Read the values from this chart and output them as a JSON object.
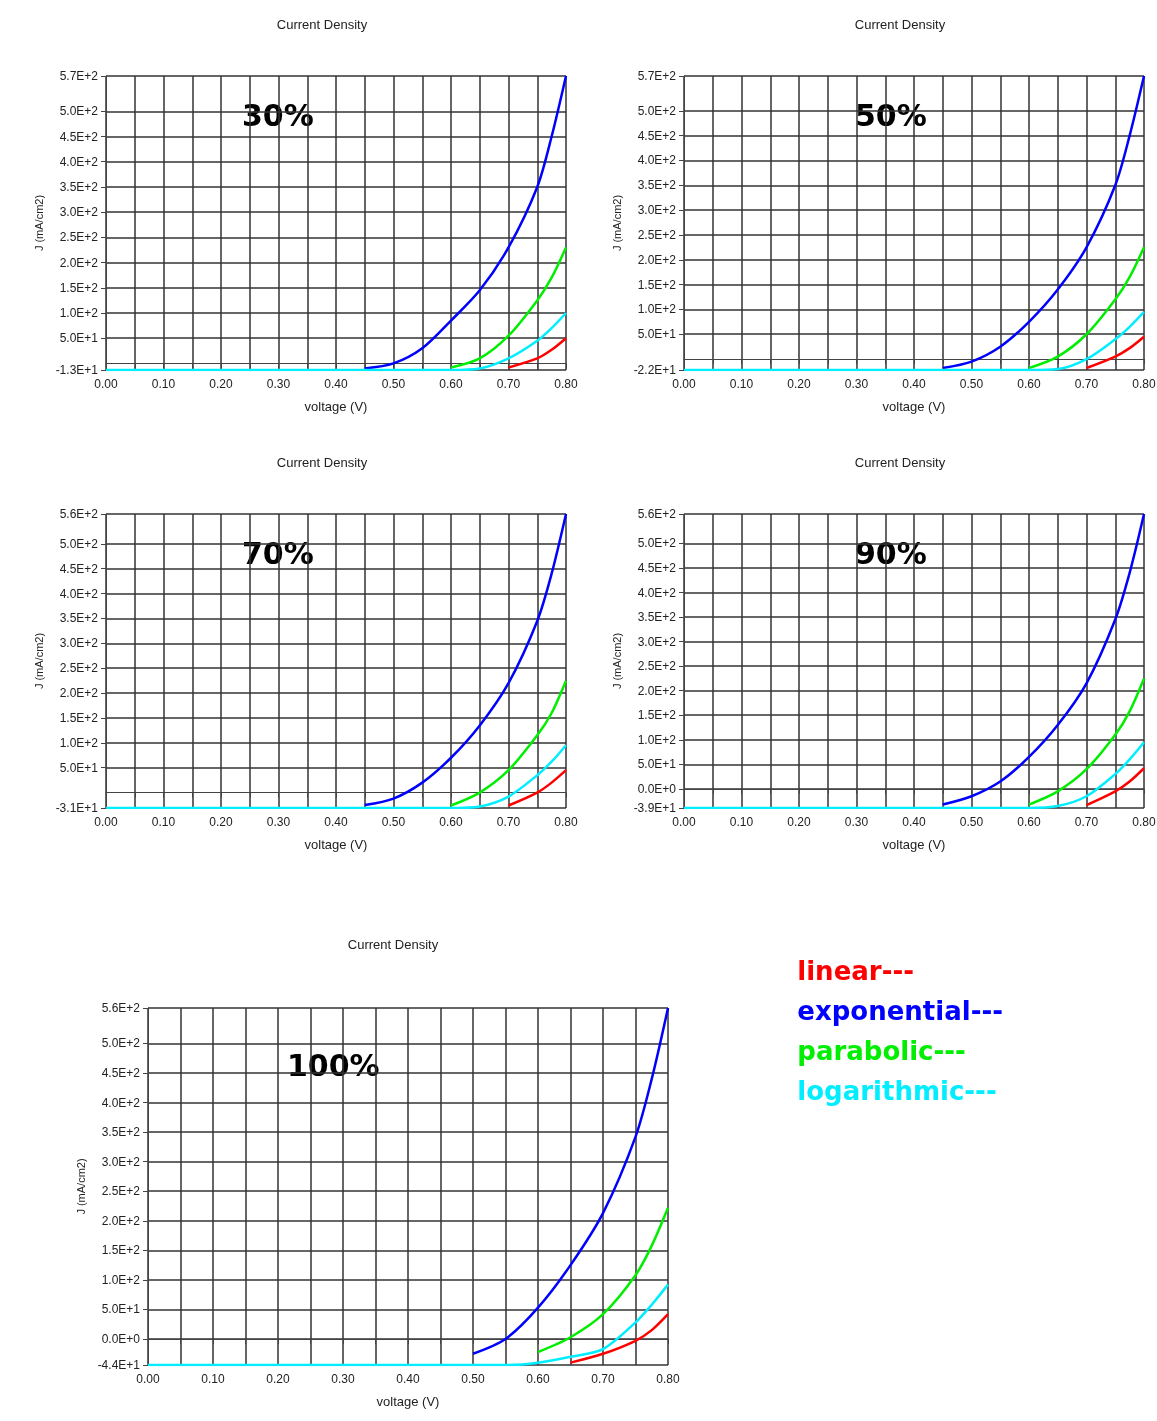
{
  "chart_data": [
    {
      "type": "line",
      "title": "Current Density",
      "xlabel": "voltage (V)",
      "ylabel": "J (mA/cm2)",
      "annotations": [
        "30%"
      ],
      "grid": true,
      "legend": false,
      "xlim": [
        0,
        0.8
      ],
      "ylim": [
        -13,
        570
      ],
      "xticks": [
        {
          "value": 0,
          "label": "0.00"
        },
        {
          "value": 0.05,
          "label": null
        },
        {
          "value": 0.1,
          "label": "0.10"
        },
        {
          "value": 0.15,
          "label": null
        },
        {
          "value": 0.2,
          "label": "0.20"
        },
        {
          "value": 0.25,
          "label": null
        },
        {
          "value": 0.3,
          "label": "0.30"
        },
        {
          "value": 0.35,
          "label": null
        },
        {
          "value": 0.4,
          "label": "0.40"
        },
        {
          "value": 0.45,
          "label": null
        },
        {
          "value": 0.5,
          "label": "0.50"
        },
        {
          "value": 0.55,
          "label": null
        },
        {
          "value": 0.6,
          "label": "0.60"
        },
        {
          "value": 0.65,
          "label": null
        },
        {
          "value": 0.7,
          "label": "0.70"
        },
        {
          "value": 0.75,
          "label": null
        },
        {
          "value": 0.8,
          "label": "0.80"
        }
      ],
      "yticks": [
        {
          "value": -13,
          "label": "-1.3E+1"
        },
        {
          "value": 50,
          "label": "5.0E+1"
        },
        {
          "value": 100,
          "label": "1.0E+2"
        },
        {
          "value": 150,
          "label": "1.5E+2"
        },
        {
          "value": 200,
          "label": "2.0E+2"
        },
        {
          "value": 250,
          "label": "2.5E+2"
        },
        {
          "value": 300,
          "label": "3.0E+2"
        },
        {
          "value": 350,
          "label": "3.5E+2"
        },
        {
          "value": 400,
          "label": "4.0E+2"
        },
        {
          "value": 450,
          "label": "4.5E+2"
        },
        {
          "value": 500,
          "label": "5.0E+2"
        },
        {
          "value": 570,
          "label": "5.7E+2"
        }
      ],
      "x": [
        0,
        0.4,
        0.45,
        0.5,
        0.55,
        0.6,
        0.65,
        0.7,
        0.75,
        0.775,
        0.8
      ],
      "series": [
        {
          "color": "#0000ff",
          "values": [
            null,
            null,
            -10,
            0,
            30,
            85,
            145,
            230,
            350,
            450,
            570
          ]
        },
        {
          "color": "#00ee00",
          "values": [
            null,
            null,
            null,
            null,
            null,
            -8,
            10,
            55,
            125,
            170,
            230
          ]
        },
        {
          "color": "#ff0000",
          "values": [
            null,
            null,
            null,
            null,
            null,
            null,
            null,
            -8,
            10,
            27,
            50
          ]
        },
        {
          "color": "#00eeff",
          "values": [
            -13,
            -13,
            -13,
            -13,
            -13,
            -13,
            -10,
            10,
            45,
            70,
            100
          ]
        }
      ]
    },
    {
      "type": "line",
      "title": "Current Density",
      "xlabel": "voltage (V)",
      "ylabel": "J (mA/cm2)",
      "annotations": [
        "50%"
      ],
      "grid": true,
      "legend": false,
      "xlim": [
        0,
        0.8
      ],
      "ylim": [
        -22,
        570
      ],
      "xticks": [
        {
          "value": 0,
          "label": "0.00"
        },
        {
          "value": 0.05,
          "label": null
        },
        {
          "value": 0.1,
          "label": "0.10"
        },
        {
          "value": 0.15,
          "label": null
        },
        {
          "value": 0.2,
          "label": "0.20"
        },
        {
          "value": 0.25,
          "label": null
        },
        {
          "value": 0.3,
          "label": "0.30"
        },
        {
          "value": 0.35,
          "label": null
        },
        {
          "value": 0.4,
          "label": "0.40"
        },
        {
          "value": 0.45,
          "label": null
        },
        {
          "value": 0.5,
          "label": "0.50"
        },
        {
          "value": 0.55,
          "label": null
        },
        {
          "value": 0.6,
          "label": "0.60"
        },
        {
          "value": 0.65,
          "label": null
        },
        {
          "value": 0.7,
          "label": "0.70"
        },
        {
          "value": 0.75,
          "label": null
        },
        {
          "value": 0.8,
          "label": "0.80"
        }
      ],
      "yticks": [
        {
          "value": -22,
          "label": "-2.2E+1"
        },
        {
          "value": 50,
          "label": "5.0E+1"
        },
        {
          "value": 100,
          "label": "1.0E+2"
        },
        {
          "value": 150,
          "label": "1.5E+2"
        },
        {
          "value": 200,
          "label": "2.0E+2"
        },
        {
          "value": 250,
          "label": "2.5E+2"
        },
        {
          "value": 300,
          "label": "3.0E+2"
        },
        {
          "value": 350,
          "label": "3.5E+2"
        },
        {
          "value": 400,
          "label": "4.0E+2"
        },
        {
          "value": 450,
          "label": "4.5E+2"
        },
        {
          "value": 500,
          "label": "5.0E+2"
        },
        {
          "value": 570,
          "label": "5.7E+2"
        }
      ],
      "x": [
        0,
        0.4,
        0.45,
        0.5,
        0.55,
        0.6,
        0.65,
        0.7,
        0.75,
        0.775,
        0.8
      ],
      "series": [
        {
          "color": "#0000ff",
          "values": [
            null,
            null,
            -18,
            -5,
            25,
            75,
            140,
            225,
            350,
            450,
            570
          ]
        },
        {
          "color": "#00ee00",
          "values": [
            null,
            null,
            null,
            null,
            null,
            -18,
            5,
            50,
            120,
            165,
            225
          ]
        },
        {
          "color": "#ff0000",
          "values": [
            null,
            null,
            null,
            null,
            null,
            null,
            null,
            -18,
            5,
            22,
            45
          ]
        },
        {
          "color": "#00eeff",
          "values": [
            -22,
            -22,
            -22,
            -22,
            -22,
            -22,
            -20,
            0,
            40,
            65,
            95
          ]
        }
      ]
    },
    {
      "type": "line",
      "title": "Current Density",
      "xlabel": "voltage (V)",
      "ylabel": "J (mA/cm2)",
      "annotations": [
        "70%"
      ],
      "grid": true,
      "legend": false,
      "xlim": [
        0,
        0.8
      ],
      "ylim": [
        -31,
        560
      ],
      "xticks": [
        {
          "value": 0,
          "label": "0.00"
        },
        {
          "value": 0.05,
          "label": null
        },
        {
          "value": 0.1,
          "label": "0.10"
        },
        {
          "value": 0.15,
          "label": null
        },
        {
          "value": 0.2,
          "label": "0.20"
        },
        {
          "value": 0.25,
          "label": null
        },
        {
          "value": 0.3,
          "label": "0.30"
        },
        {
          "value": 0.35,
          "label": null
        },
        {
          "value": 0.4,
          "label": "0.40"
        },
        {
          "value": 0.45,
          "label": null
        },
        {
          "value": 0.5,
          "label": "0.50"
        },
        {
          "value": 0.55,
          "label": null
        },
        {
          "value": 0.6,
          "label": "0.60"
        },
        {
          "value": 0.65,
          "label": null
        },
        {
          "value": 0.7,
          "label": "0.70"
        },
        {
          "value": 0.75,
          "label": null
        },
        {
          "value": 0.8,
          "label": "0.80"
        }
      ],
      "yticks": [
        {
          "value": -31,
          "label": "-3.1E+1"
        },
        {
          "value": 50,
          "label": "5.0E+1"
        },
        {
          "value": 100,
          "label": "1.0E+2"
        },
        {
          "value": 150,
          "label": "1.5E+2"
        },
        {
          "value": 200,
          "label": "2.0E+2"
        },
        {
          "value": 250,
          "label": "2.5E+2"
        },
        {
          "value": 300,
          "label": "3.0E+2"
        },
        {
          "value": 350,
          "label": "3.5E+2"
        },
        {
          "value": 400,
          "label": "4.0E+2"
        },
        {
          "value": 450,
          "label": "4.5E+2"
        },
        {
          "value": 500,
          "label": "5.0E+2"
        },
        {
          "value": 560,
          "label": "5.6E+2"
        }
      ],
      "x": [
        0,
        0.4,
        0.45,
        0.5,
        0.55,
        0.6,
        0.65,
        0.7,
        0.75,
        0.775,
        0.8
      ],
      "series": [
        {
          "color": "#0000ff",
          "values": [
            null,
            null,
            -25,
            -12,
            20,
            70,
            135,
            220,
            345,
            440,
            560
          ]
        },
        {
          "color": "#00ee00",
          "values": [
            null,
            null,
            null,
            null,
            null,
            -26,
            0,
            45,
            115,
            160,
            225
          ]
        },
        {
          "color": "#ff0000",
          "values": [
            null,
            null,
            null,
            null,
            null,
            null,
            null,
            -26,
            0,
            20,
            45
          ]
        },
        {
          "color": "#00eeff",
          "values": [
            -31,
            -31,
            -31,
            -31,
            -31,
            -31,
            -28,
            -8,
            35,
            62,
            95
          ]
        }
      ]
    },
    {
      "type": "line",
      "title": "Current Density",
      "xlabel": "voltage (V)",
      "ylabel": "J (mA/cm2)",
      "annotations": [
        "90%"
      ],
      "grid": true,
      "legend": false,
      "xlim": [
        0,
        0.8
      ],
      "ylim": [
        -39,
        560
      ],
      "xticks": [
        {
          "value": 0,
          "label": "0.00"
        },
        {
          "value": 0.05,
          "label": null
        },
        {
          "value": 0.1,
          "label": "0.10"
        },
        {
          "value": 0.15,
          "label": null
        },
        {
          "value": 0.2,
          "label": "0.20"
        },
        {
          "value": 0.25,
          "label": null
        },
        {
          "value": 0.3,
          "label": "0.30"
        },
        {
          "value": 0.35,
          "label": null
        },
        {
          "value": 0.4,
          "label": "0.40"
        },
        {
          "value": 0.45,
          "label": null
        },
        {
          "value": 0.5,
          "label": "0.50"
        },
        {
          "value": 0.55,
          "label": null
        },
        {
          "value": 0.6,
          "label": "0.60"
        },
        {
          "value": 0.65,
          "label": null
        },
        {
          "value": 0.7,
          "label": "0.70"
        },
        {
          "value": 0.75,
          "label": null
        },
        {
          "value": 0.8,
          "label": "0.80"
        }
      ],
      "yticks": [
        {
          "value": -39,
          "label": "-3.9E+1"
        },
        {
          "value": 0,
          "label": "0.0E+0"
        },
        {
          "value": 50,
          "label": "5.0E+1"
        },
        {
          "value": 100,
          "label": "1.0E+2"
        },
        {
          "value": 150,
          "label": "1.5E+2"
        },
        {
          "value": 200,
          "label": "2.0E+2"
        },
        {
          "value": 250,
          "label": "2.5E+2"
        },
        {
          "value": 300,
          "label": "3.0E+2"
        },
        {
          "value": 350,
          "label": "3.5E+2"
        },
        {
          "value": 400,
          "label": "4.0E+2"
        },
        {
          "value": 450,
          "label": "4.5E+2"
        },
        {
          "value": 500,
          "label": "5.0E+2"
        },
        {
          "value": 560,
          "label": "5.6E+2"
        }
      ],
      "x": [
        0,
        0.4,
        0.45,
        0.5,
        0.55,
        0.6,
        0.65,
        0.7,
        0.75,
        0.775,
        0.8
      ],
      "series": [
        {
          "color": "#0000ff",
          "values": [
            null,
            null,
            -32,
            -15,
            15,
            65,
            130,
            215,
            345,
            440,
            560
          ]
        },
        {
          "color": "#00ee00",
          "values": [
            null,
            null,
            null,
            null,
            null,
            -32,
            -5,
            40,
            110,
            158,
            225
          ]
        },
        {
          "color": "#ff0000",
          "values": [
            null,
            null,
            null,
            null,
            null,
            null,
            null,
            -33,
            -5,
            15,
            42
          ]
        },
        {
          "color": "#00eeff",
          "values": [
            -39,
            -39,
            -39,
            -39,
            -39,
            -39,
            -35,
            -15,
            30,
            60,
            95
          ]
        }
      ]
    },
    {
      "type": "line",
      "title": "Current Density",
      "xlabel": "voltage (V)",
      "ylabel": "J (mA/cm2)",
      "annotations": [
        "100%"
      ],
      "grid": true,
      "legend": "right",
      "xlim": [
        0,
        0.8
      ],
      "ylim": [
        -44,
        560
      ],
      "xticks": [
        {
          "value": 0,
          "label": "0.00"
        },
        {
          "value": 0.05,
          "label": null
        },
        {
          "value": 0.1,
          "label": "0.10"
        },
        {
          "value": 0.15,
          "label": null
        },
        {
          "value": 0.2,
          "label": "0.20"
        },
        {
          "value": 0.25,
          "label": null
        },
        {
          "value": 0.3,
          "label": "0.30"
        },
        {
          "value": 0.35,
          "label": null
        },
        {
          "value": 0.4,
          "label": "0.40"
        },
        {
          "value": 0.45,
          "label": null
        },
        {
          "value": 0.5,
          "label": "0.50"
        },
        {
          "value": 0.55,
          "label": null
        },
        {
          "value": 0.6,
          "label": "0.60"
        },
        {
          "value": 0.65,
          "label": null
        },
        {
          "value": 0.7,
          "label": "0.70"
        },
        {
          "value": 0.75,
          "label": null
        },
        {
          "value": 0.8,
          "label": "0.80"
        }
      ],
      "yticks": [
        {
          "value": -44,
          "label": "-4.4E+1"
        },
        {
          "value": 0,
          "label": "0.0E+0"
        },
        {
          "value": 50,
          "label": "5.0E+1"
        },
        {
          "value": 100,
          "label": "1.0E+2"
        },
        {
          "value": 150,
          "label": "1.5E+2"
        },
        {
          "value": 200,
          "label": "2.0E+2"
        },
        {
          "value": 250,
          "label": "2.5E+2"
        },
        {
          "value": 300,
          "label": "3.0E+2"
        },
        {
          "value": 350,
          "label": "3.5E+2"
        },
        {
          "value": 400,
          "label": "4.0E+2"
        },
        {
          "value": 450,
          "label": "4.5E+2"
        },
        {
          "value": 500,
          "label": "5.0E+2"
        },
        {
          "value": 560,
          "label": "5.6E+2"
        }
      ],
      "x": [
        0,
        0.4,
        0.45,
        0.5,
        0.55,
        0.6,
        0.65,
        0.7,
        0.75,
        0.775,
        0.8
      ],
      "series": [
        {
          "name": "linear---",
          "color": "#ff0000",
          "values": [
            null,
            null,
            null,
            null,
            null,
            null,
            -40,
            -25,
            -3,
            15,
            42
          ]
        },
        {
          "name": "exponential---",
          "color": "#0000ff",
          "values": [
            null,
            null,
            null,
            -25,
            0,
            53,
            125,
            213,
            342,
            440,
            560
          ]
        },
        {
          "name": "parabolic---",
          "color": "#00ee00",
          "values": [
            null,
            null,
            null,
            null,
            null,
            -22,
            3,
            42,
            108,
            158,
            222
          ]
        },
        {
          "name": "logarithmic---",
          "color": "#00eeff",
          "values": [
            -44,
            -44,
            -44,
            -44,
            -44,
            -40,
            -30,
            -17,
            28,
            58,
            92
          ]
        }
      ]
    }
  ]
}
